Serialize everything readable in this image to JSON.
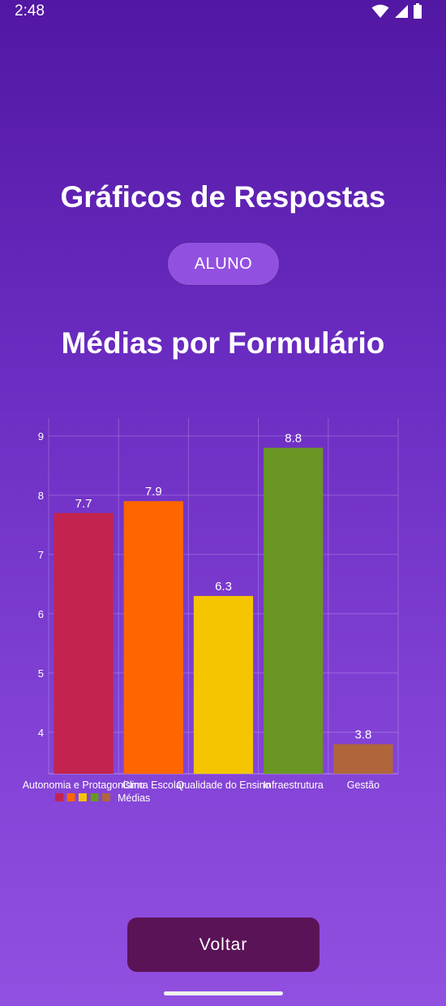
{
  "status_bar": {
    "time": "2:48"
  },
  "page": {
    "title": "Gráficos de Respostas",
    "role_button_label": "ALUNO",
    "back_button_label": "Voltar"
  },
  "chart_data": {
    "type": "bar",
    "title": "Médias por Formulário",
    "categories": [
      "Autonomia e Protagonismo",
      "Clima Escolar",
      "Qualidade do Ensino",
      "Infraestrutura",
      "Gestão"
    ],
    "series": [
      {
        "name": "Médias",
        "values": [
          7.7,
          7.9,
          6.3,
          8.8,
          3.8
        ]
      }
    ],
    "colors": [
      "#c2244f",
      "#ff6500",
      "#f4c500",
      "#6a9623",
      "#b0663a"
    ],
    "data_labels": [
      "7.7",
      "7.9",
      "6.3",
      "8.8",
      "3.8"
    ],
    "y_ticks": [
      4,
      5,
      6,
      7,
      8,
      9
    ],
    "ylim": [
      3.3,
      9.3
    ],
    "xlabel": "",
    "ylabel": "",
    "grid": true,
    "legend": "bottom-left"
  }
}
